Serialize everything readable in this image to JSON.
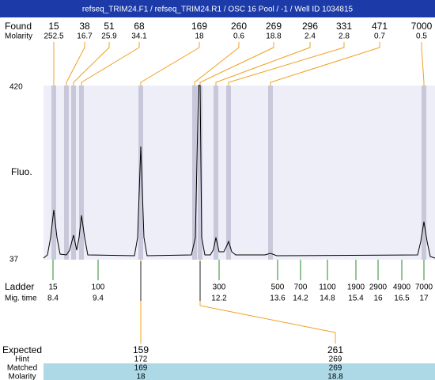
{
  "title": "refseq_TRIM24.F1 / refseq_TRIM24.R1 / OSC 16 Pool / -1 / Well ID 1034815",
  "found": {
    "label": "Found",
    "values": [
      "15",
      "38",
      "51",
      "68",
      "169",
      "260",
      "269",
      "296",
      "331",
      "471",
      "7000"
    ]
  },
  "molarity": {
    "label": "Molarity",
    "values": [
      "252.5",
      "16.7",
      "25.9",
      "34.1",
      "18",
      "0.6",
      "18.8",
      "2.4",
      "2.8",
      "0.7",
      "0.5"
    ]
  },
  "y_axis": {
    "label": "Fluo.",
    "max": "420",
    "min": "37"
  },
  "ladder": {
    "label": "Ladder",
    "values": [
      "15",
      "100",
      "300",
      "500",
      "700",
      "1100",
      "1900",
      "2900",
      "4900",
      "7000"
    ]
  },
  "mig_time": {
    "label": "Mig. time",
    "values": [
      "8.4",
      "9.4",
      "12.2",
      "13.6",
      "14.2",
      "14.8",
      "15.4",
      "16",
      "16.5",
      "17"
    ]
  },
  "expected": {
    "label": "Expected",
    "values": [
      "159",
      "261"
    ]
  },
  "hint": {
    "label": "Hint",
    "values": [
      "172",
      "269"
    ]
  },
  "matched": {
    "label": "Matched",
    "values": [
      "169",
      "269"
    ]
  },
  "matched_molarity": {
    "label": "Molarity",
    "values": [
      "18",
      "18.8"
    ]
  }
}
